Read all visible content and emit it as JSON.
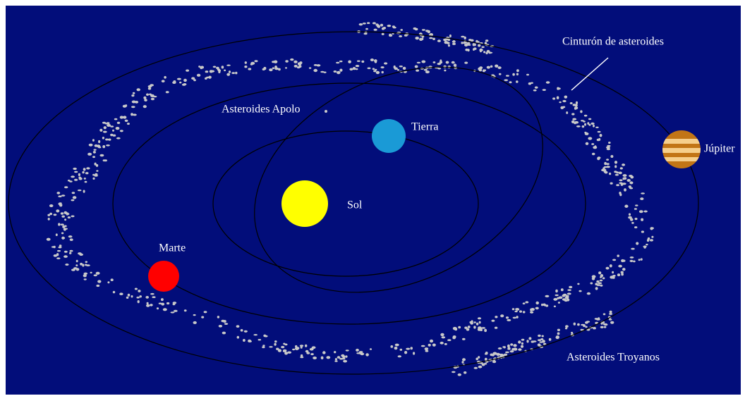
{
  "labels": {
    "belt": "Cinturón de asteroides",
    "apollo": "Asteroides Apolo",
    "earth": "Tierra",
    "sun": "Sol",
    "jupiter": "Júpiter",
    "mars": "Marte",
    "trojans": "Asteroides Troyanos"
  }
}
